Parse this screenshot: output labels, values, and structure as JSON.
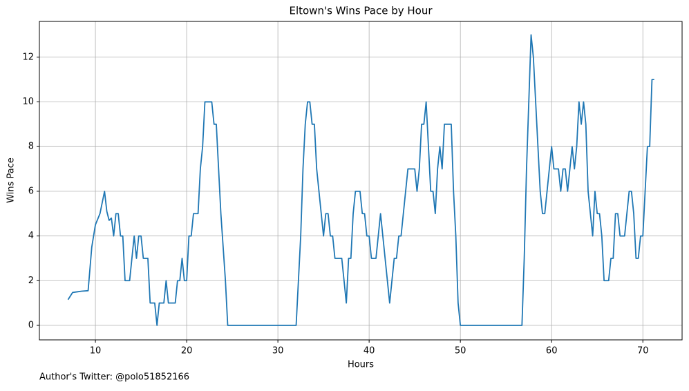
{
  "chart_data": {
    "type": "line",
    "title": "Eltown's Wins Pace by Hour",
    "x_label": "Hours",
    "y_label": "Wins Pace",
    "footer": "Author's Twitter: @polo51852166",
    "color": "#1f77b4",
    "grid": true,
    "xlim": [
      3.86,
      74.3
    ],
    "ylim": [
      -0.65,
      13.6
    ],
    "xticks": [
      10,
      20,
      30,
      40,
      50,
      60,
      70
    ],
    "yticks": [
      0,
      2,
      4,
      6,
      8,
      10,
      12
    ],
    "x": [
      7,
      7.5,
      8,
      8.5,
      9.2,
      9.6,
      10,
      10.5,
      11,
      11.25,
      11.5,
      11.75,
      12,
      12.25,
      12.5,
      12.75,
      13,
      13.25,
      13.5,
      13.75,
      14,
      14.25,
      14.5,
      14.75,
      15,
      15.25,
      15.75,
      16,
      16.5,
      16.75,
      17,
      17.5,
      17.75,
      18,
      18.75,
      19,
      19.25,
      19.5,
      19.75,
      20,
      20.25,
      20.5,
      20.75,
      21.25,
      21.5,
      21.75,
      22,
      22.75,
      23,
      23.25,
      23.75,
      24.25,
      24.5,
      32,
      32.25,
      32.5,
      32.75,
      33,
      33.25,
      33.5,
      33.75,
      34,
      34.25,
      34.75,
      35,
      35.25,
      35.5,
      35.75,
      36,
      36.25,
      37,
      37.25,
      37.5,
      37.75,
      38,
      38.25,
      38.5,
      39,
      39.25,
      39.5,
      39.75,
      40,
      40.25,
      40.75,
      41,
      41.25,
      41.5,
      41.75,
      42,
      42.25,
      42.5,
      42.75,
      43,
      43.25,
      43.5,
      43.75,
      44,
      44.25,
      45,
      45.25,
      45.5,
      45.75,
      46,
      46.25,
      46.5,
      46.75,
      47,
      47.25,
      47.5,
      47.75,
      48,
      48.25,
      49,
      49.25,
      49.5,
      49.75,
      50,
      56.75,
      57,
      57.25,
      57.5,
      57.75,
      58,
      58.25,
      58.5,
      58.75,
      59,
      59.25,
      59.5,
      59.75,
      60,
      60.25,
      60.75,
      61,
      61.25,
      61.5,
      61.75,
      62,
      62.25,
      62.5,
      62.75,
      63,
      63.25,
      63.5,
      63.75,
      64,
      64.25,
      64.5,
      64.75,
      65,
      65.25,
      65.5,
      65.75,
      66.25,
      66.5,
      66.75,
      67,
      67.25,
      67.5,
      68,
      68.25,
      68.5,
      68.75,
      69,
      69.25,
      69.5,
      69.75,
      70,
      70.25,
      70.5,
      70.75,
      71,
      71.25
    ],
    "values": [
      1.15,
      1.47,
      1.5,
      1.53,
      1.55,
      3.5,
      4.5,
      5,
      6,
      5.1,
      4.7,
      4.8,
      4,
      5,
      5,
      4,
      4,
      2,
      2,
      2,
      3,
      4,
      3,
      4,
      4,
      3,
      3,
      1,
      1,
      0,
      1,
      1,
      2,
      1,
      1,
      2,
      2,
      3,
      2,
      2,
      4,
      4,
      5,
      5,
      7,
      8,
      10,
      10,
      9,
      9,
      5,
      2,
      0,
      0,
      2,
      4,
      7,
      9,
      10,
      10,
      9,
      9,
      7,
      5,
      4,
      5,
      5,
      4,
      4,
      3,
      3,
      2,
      1,
      3,
      3,
      5,
      6,
      6,
      5,
      5,
      4,
      4,
      3,
      3,
      4,
      5,
      4,
      3,
      2,
      1,
      2,
      3,
      3,
      4,
      4,
      5,
      6,
      7,
      7,
      6,
      7,
      9,
      9,
      10,
      8,
      6,
      6,
      5,
      7,
      8,
      7,
      9,
      9,
      6,
      4,
      1,
      0,
      0,
      3,
      7,
      10,
      13,
      12,
      10,
      8,
      6,
      5,
      5,
      6,
      7,
      8,
      7,
      7,
      6,
      7,
      7,
      6,
      7,
      8,
      7,
      8,
      10,
      9,
      10,
      9,
      6,
      5,
      4,
      6,
      5,
      5,
      4,
      2,
      2,
      3,
      3,
      5,
      5,
      4,
      4,
      5,
      6,
      6,
      5,
      3,
      3,
      4,
      4,
      6,
      8,
      8,
      11,
      11
    ]
  }
}
